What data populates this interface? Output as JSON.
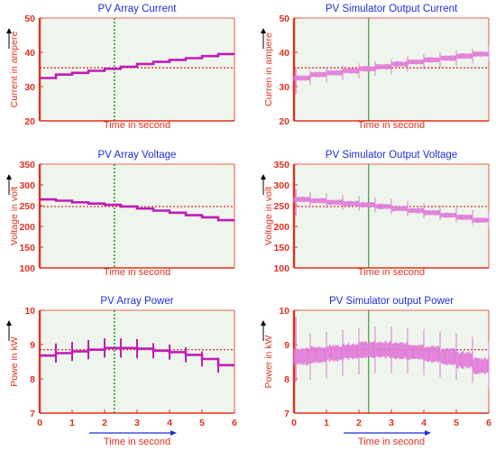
{
  "chart_data": [
    {
      "type": "line",
      "title": "PV Array Current",
      "ylabel": "Current in ampere",
      "xlabel": "Time in second",
      "ylim": [
        20,
        50
      ],
      "yticks": [
        20,
        30,
        40,
        50
      ],
      "xlim": [
        0,
        6
      ],
      "xticks": [],
      "x_arrow": false,
      "signal": "clean",
      "reference_y": 35.5,
      "marker_x": 2.3,
      "series": [
        {
          "x": [
            0,
            0.5,
            1,
            1.5,
            2,
            2.5,
            3,
            3.5,
            4,
            4.5,
            5,
            5.5,
            6
          ],
          "values": [
            32.5,
            33.5,
            34.0,
            34.6,
            35.2,
            35.8,
            36.6,
            37.2,
            37.8,
            38.3,
            38.9,
            39.5,
            39.5
          ]
        }
      ]
    },
    {
      "type": "line",
      "title": "PV Simulator Output Current",
      "ylabel": "Curren in ampere",
      "xlabel": "Time in second",
      "ylim": [
        20,
        50
      ],
      "yticks": [
        20,
        30,
        40,
        50
      ],
      "xlim": [
        0,
        6
      ],
      "xticks": [],
      "x_arrow": false,
      "signal": "noisy",
      "reference_y": 35.5,
      "marker_x": 2.3,
      "series": [
        {
          "x": [
            0,
            0.5,
            1,
            1.5,
            2,
            2.5,
            3,
            3.5,
            4,
            4.5,
            5,
            5.5,
            6
          ],
          "values": [
            32.5,
            33.5,
            34.0,
            34.6,
            35.2,
            35.8,
            36.6,
            37.2,
            37.8,
            38.3,
            38.9,
            39.5,
            39.5
          ]
        }
      ]
    },
    {
      "type": "line",
      "title": "PV Array Voltage",
      "ylabel": "Voltage in volt",
      "xlabel": "Time in second",
      "ylim": [
        100,
        350
      ],
      "yticks": [
        100,
        150,
        200,
        250,
        300,
        350
      ],
      "xlim": [
        0,
        6
      ],
      "xticks": [],
      "x_arrow": false,
      "signal": "clean",
      "reference_y": 248,
      "marker_x": 2.3,
      "series": [
        {
          "x": [
            0,
            0.5,
            1,
            1.5,
            2,
            2.5,
            3,
            3.5,
            4,
            4.5,
            5,
            5.5,
            6
          ],
          "values": [
            265,
            262,
            258,
            255,
            252,
            248,
            243,
            238,
            233,
            227,
            222,
            215,
            210
          ]
        }
      ]
    },
    {
      "type": "line",
      "title": "PV Simulator Output Voltage",
      "ylabel": "Voltage in volt",
      "xlabel": "Time in second",
      "ylim": [
        100,
        350
      ],
      "yticks": [
        100,
        150,
        200,
        250,
        300,
        350
      ],
      "xlim": [
        0,
        6
      ],
      "xticks": [],
      "x_arrow": false,
      "signal": "noisy",
      "reference_y": 248,
      "marker_x": 2.3,
      "series": [
        {
          "x": [
            0,
            0.5,
            1,
            1.5,
            2,
            2.5,
            3,
            3.5,
            4,
            4.5,
            5,
            5.5,
            6
          ],
          "values": [
            265,
            262,
            258,
            255,
            252,
            248,
            243,
            238,
            233,
            227,
            222,
            215,
            210
          ]
        }
      ]
    },
    {
      "type": "line",
      "title": "PV Array Power",
      "ylabel": "Powe in kW",
      "xlabel": "Time in second",
      "ylim": [
        7,
        10
      ],
      "yticks": [
        7,
        8,
        9,
        10
      ],
      "xlim": [
        0,
        6
      ],
      "xticks": [
        0,
        1,
        2,
        3,
        4,
        5,
        6
      ],
      "x_arrow": true,
      "signal": "clean",
      "reference_y": 8.85,
      "marker_x": 2.3,
      "series": [
        {
          "x": [
            0,
            0.5,
            1,
            1.5,
            2,
            2.5,
            3,
            3.5,
            4,
            4.5,
            5,
            5.5,
            6
          ],
          "values": [
            8.68,
            8.75,
            8.8,
            8.85,
            8.9,
            8.9,
            8.88,
            8.82,
            8.78,
            8.7,
            8.58,
            8.4,
            8.4
          ]
        }
      ]
    },
    {
      "type": "line",
      "title": "PV Simulator output Power",
      "ylabel": "Power in kW",
      "xlabel": "Time in second",
      "ylim": [
        7,
        10
      ],
      "yticks": [
        7,
        8,
        9,
        10
      ],
      "xlim": [
        0,
        6
      ],
      "xticks": [
        0,
        1,
        2,
        3,
        4,
        5,
        6
      ],
      "x_arrow": true,
      "signal": "noisy",
      "reference_y": 8.85,
      "marker_x": 2.3,
      "series": [
        {
          "x": [
            0,
            0.5,
            1,
            1.5,
            2,
            2.5,
            3,
            3.5,
            4,
            4.5,
            5,
            5.5,
            6
          ],
          "values": [
            8.65,
            8.7,
            8.75,
            8.8,
            8.85,
            8.85,
            8.82,
            8.78,
            8.72,
            8.65,
            8.55,
            8.38,
            8.38
          ]
        }
      ]
    }
  ],
  "colors": {
    "plot_bg": "#eef5ec",
    "axis": "#e0301e",
    "signal": "#c01cb5",
    "signal_noisy": "#e07ad9",
    "reference": "#d81818",
    "marker": "#1a8a1a",
    "title": "#1f2fd6",
    "arrow": "#1f2fd6"
  }
}
